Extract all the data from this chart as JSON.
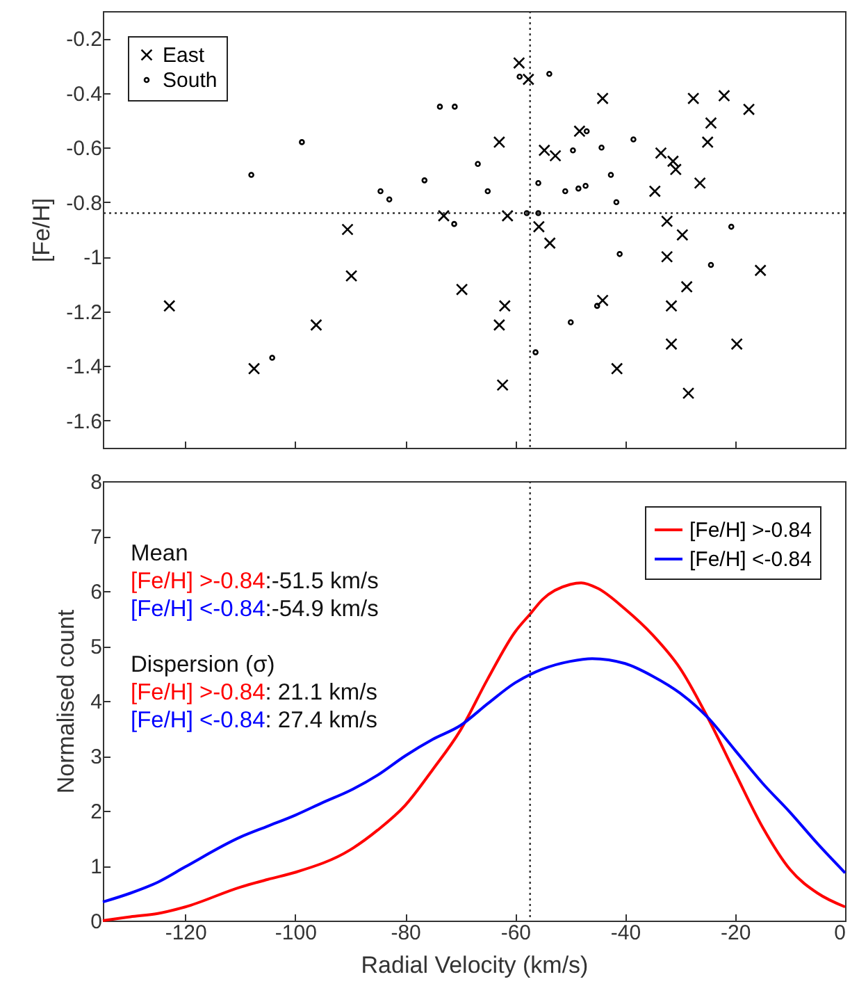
{
  "chart_data": [
    {
      "type": "scatter",
      "ylabel": "[Fe/H]",
      "xlim": [
        -135,
        0
      ],
      "xticks": [
        -120,
        -100,
        -80,
        -60,
        -40,
        -20,
        0
      ],
      "ylim": [
        -1.7,
        -0.1
      ],
      "yticks": [
        -1.6,
        -1.4,
        -1.2,
        -1,
        -0.8,
        -0.6,
        -0.4,
        -0.2
      ],
      "tick_labels": "y",
      "legend": "top left",
      "grid": false,
      "ref_lines": [
        {
          "axis": "x",
          "value": -57.3,
          "line_style": "dotted"
        },
        {
          "axis": "y",
          "value": -0.84,
          "line_style": "dotted"
        }
      ],
      "series": [
        {
          "name": "East",
          "color": "#000000",
          "marker": "cross",
          "x": [
            -122.9,
            -107.5,
            -96.2,
            -90.5,
            -89.8,
            -73.0,
            -69.7,
            -62.9,
            -61.4,
            -61.9,
            -62.9,
            -62.3,
            -59.3,
            -57.6,
            -55.7,
            -53.7,
            -54.7,
            -52.7,
            -48.3,
            -44.1,
            -44.1,
            -41.5,
            -34.6,
            -33.5,
            -31.3,
            -30.8,
            -32.4,
            -32.4,
            -29.6,
            -28.8,
            -31.6,
            -31.6,
            -28.5,
            -27.6,
            -26.4,
            -25.0,
            -24.4,
            -22.0,
            -17.5,
            -19.7,
            -15.4
          ],
          "values": [
            -1.18,
            -1.41,
            -1.25,
            -0.9,
            -1.07,
            -0.85,
            -1.12,
            -0.58,
            -0.85,
            -1.18,
            -1.25,
            -1.47,
            -0.29,
            -0.35,
            -0.89,
            -0.95,
            -0.61,
            -0.63,
            -0.54,
            -0.42,
            -1.16,
            -1.41,
            -0.76,
            -0.62,
            -0.65,
            -0.68,
            -0.87,
            -1.0,
            -0.92,
            -1.11,
            -1.18,
            -1.32,
            -1.5,
            -0.42,
            -0.73,
            -0.58,
            -0.51,
            -0.41,
            -0.46,
            -1.32,
            -1.05
          ]
        },
        {
          "name": "South",
          "color": "#000000",
          "marker": "circle",
          "x": [
            -108.0,
            -104.2,
            -98.8,
            -84.5,
            -82.9,
            -76.5,
            -73.7,
            -71.0,
            -71.1,
            -66.8,
            -65.0,
            -59.2,
            -57.9,
            -55.8,
            -53.8,
            -55.8,
            -56.3,
            -50.9,
            -49.5,
            -48.5,
            -47.2,
            -47.0,
            -49.9,
            -45.1,
            -44.3,
            -42.6,
            -41.6,
            -41.0,
            -38.5,
            -24.4,
            -20.7
          ],
          "values": [
            -0.7,
            -1.37,
            -0.58,
            -0.76,
            -0.79,
            -0.72,
            -0.45,
            -0.45,
            -0.88,
            -0.66,
            -0.76,
            -0.34,
            -0.84,
            -0.84,
            -0.33,
            -0.73,
            -1.35,
            -0.76,
            -0.61,
            -0.75,
            -0.74,
            -0.54,
            -1.24,
            -1.18,
            -0.6,
            -0.7,
            -0.8,
            -0.99,
            -0.57,
            -1.03,
            -0.89
          ]
        }
      ]
    },
    {
      "type": "line",
      "xlabel": "Radial Velocity (km/s)",
      "ylabel": "Normalised count",
      "xlim": [
        -135,
        0
      ],
      "xticks": [
        -120,
        -100,
        -80,
        -60,
        -40,
        -20,
        0
      ],
      "ylim": [
        0,
        8
      ],
      "yticks": [
        0,
        1,
        2,
        3,
        4,
        5,
        6,
        7,
        8
      ],
      "legend": "top right",
      "grid": false,
      "line_style": "solid",
      "ref_lines": [
        {
          "axis": "x",
          "value": -57.3,
          "line_style": "dotted"
        }
      ],
      "annotations": [
        "Mean",
        "[Fe/H] >-0.84:-51.5 km/s",
        "[Fe/H] <-0.84:-54.9 km/s",
        "Dispersion (σ)",
        "[Fe/H] >-0.84: 21.1 km/s",
        "[Fe/H] <-0.84: 27.4 km/s"
      ],
      "series": [
        {
          "name": "[Fe/H] >-0.84",
          "color": "#ff0000",
          "x": [
            -135,
            -130,
            -125,
            -120,
            -110,
            -105,
            -100,
            -90,
            -85,
            -80,
            -75,
            -70,
            -65,
            -60,
            -57.3,
            -55,
            -50,
            -48,
            -45,
            -40,
            -35,
            -30,
            -25,
            -20,
            -15,
            -10,
            -5,
            0
          ],
          "values": [
            0,
            0.07,
            0.13,
            0.25,
            0.61,
            0.75,
            0.88,
            1.29,
            1.65,
            2.1,
            2.75,
            3.46,
            4.4,
            5.26,
            5.58,
            5.85,
            6.12,
            6.15,
            6.05,
            5.67,
            5.2,
            4.59,
            3.7,
            2.69,
            1.7,
            0.93,
            0.5,
            0.25
          ]
        },
        {
          "name": "[Fe/H] <-0.84",
          "color": "#0000ff",
          "x": [
            -135,
            -130,
            -125,
            -120,
            -110,
            -105,
            -100,
            -95,
            -90,
            -85,
            -80,
            -75,
            -70,
            -65,
            -60,
            -55,
            -50,
            -46,
            -40,
            -35,
            -30,
            -25,
            -20,
            -15,
            -10,
            -5,
            0
          ],
          "values": [
            0.34,
            0.5,
            0.7,
            0.98,
            1.52,
            1.72,
            1.92,
            2.15,
            2.37,
            2.65,
            3.0,
            3.3,
            3.55,
            3.95,
            4.33,
            4.58,
            4.72,
            4.77,
            4.68,
            4.45,
            4.14,
            3.7,
            3.1,
            2.5,
            1.97,
            1.4,
            0.87
          ]
        }
      ]
    }
  ]
}
